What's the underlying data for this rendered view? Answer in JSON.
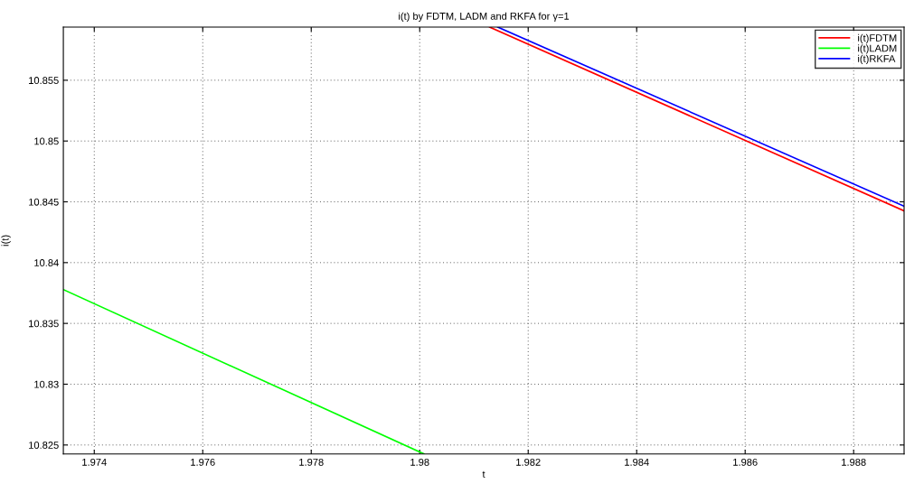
{
  "chart_data": {
    "type": "line",
    "title": "i(t) by FDTM, LADM and RKFA for γ=1",
    "xlabel": "t",
    "ylabel": "i(t)",
    "series": [
      {
        "name": "i(t)FDTM",
        "color": "#ff0000",
        "x": [
          1.98129,
          1.98893
        ],
        "values": [
          10.85937,
          10.84426
        ]
      },
      {
        "name": "i(t)LADM",
        "color": "#00ff00",
        "x": [
          1.97343,
          1.98008
        ],
        "values": [
          10.83778,
          10.82426
        ]
      },
      {
        "name": "i(t)RKFA",
        "color": "#0000ff",
        "x": [
          1.98144,
          1.98893
        ],
        "values": [
          10.85937,
          10.84464
        ]
      }
    ],
    "xlim": [
      1.97343,
      1.98893
    ],
    "xticks": [
      1.974,
      1.976,
      1.978,
      1.98,
      1.982,
      1.984,
      1.986,
      1.988
    ],
    "ylim": [
      10.82426,
      10.85937
    ],
    "yticks": [
      10.825,
      10.83,
      10.835,
      10.84,
      10.845,
      10.85,
      10.855
    ],
    "grid": true,
    "legend": "top right",
    "marker": "none",
    "line_style": "solid"
  }
}
